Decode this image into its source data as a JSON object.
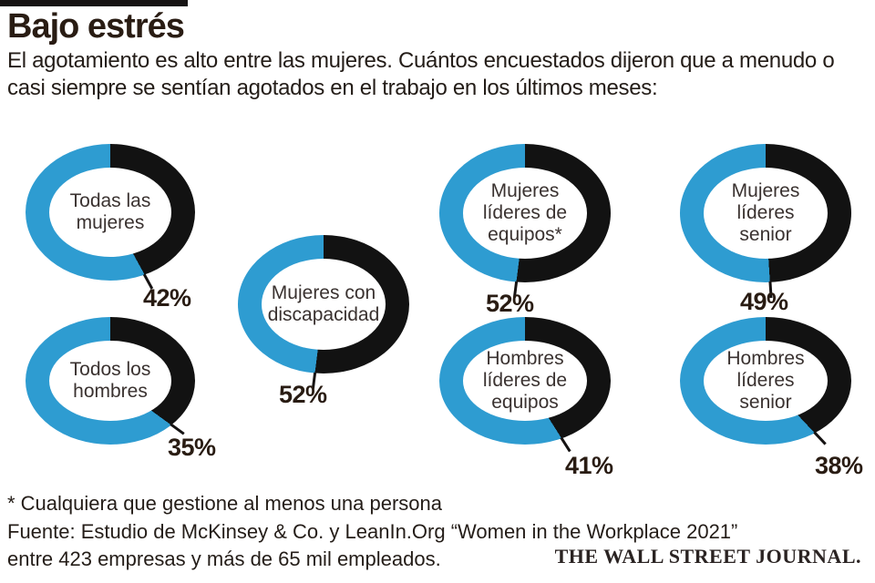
{
  "header": {
    "title": "Bajo estrés",
    "subtitle": "El agotamiento es alto entre las mujeres. Cuántos encuestados dijeron que a menudo o casi siempre se sentían agotados en el trabajo en los últimos meses:"
  },
  "chart_data": {
    "type": "pie",
    "variant": "donut-multiples",
    "title": "Bajo estrés",
    "subtitle": "El agotamiento es alto entre las mujeres. Cuántos encuestados dijeron que a menudo o casi siempre se sentían agotados en el trabajo en los últimos meses:",
    "unit": "%",
    "value_range": [
      0,
      100
    ],
    "legend": "none",
    "colors": {
      "value_segment": "#121212",
      "remainder_segment": "#2E9CD1",
      "hole": "#ffffff"
    },
    "charts": [
      {
        "label": "Todas las mujeres",
        "value": 42,
        "display": "42%",
        "remainder": 58
      },
      {
        "label": "Todos los hombres",
        "value": 35,
        "display": "35%",
        "remainder": 65
      },
      {
        "label": "Mujeres con discapacidad",
        "value": 52,
        "display": "52%",
        "remainder": 48
      },
      {
        "label": "Mujeres líderes de equipos*",
        "value": 52,
        "display": "52%",
        "remainder": 48
      },
      {
        "label": "Hombres líderes de equipos",
        "value": 41,
        "display": "41%",
        "remainder": 59
      },
      {
        "label": "Mujeres líderes senior",
        "value": 49,
        "display": "49%",
        "remainder": 51
      },
      {
        "label": "Hombres líderes senior",
        "value": 38,
        "display": "38%",
        "remainder": 62
      }
    ]
  },
  "footer": {
    "footnote": "* Cualquiera que gestione al menos una persona",
    "source_line1": "Fuente: Estudio de McKinsey & Co. y LeanIn.Org “Women in the Workplace 2021”",
    "source_line2": "entre 423 empresas y más de 65 mil empleados.",
    "brand": "THE WALL STREET JOURNAL."
  }
}
